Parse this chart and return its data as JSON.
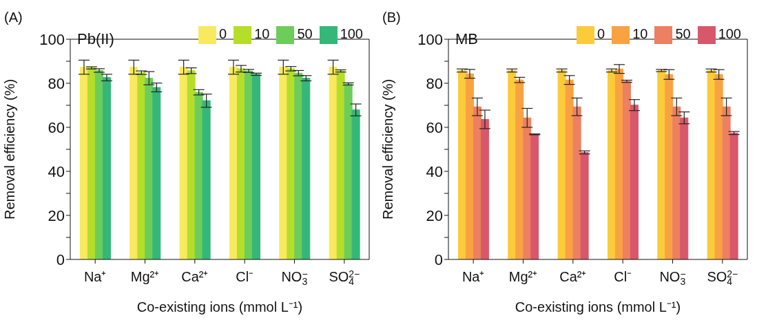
{
  "chart_data": [
    {
      "type": "bar",
      "title": "(A)",
      "subtitle": "Pb(II)",
      "xlabel": "Co-existing ions (mmol L⁻¹)",
      "ylabel": "Removal efficiency (%)",
      "categories": [
        "Na⁺",
        "Mg²⁺",
        "Ca²⁺",
        "Cl⁻",
        "NO$_{3}$$^{−}$",
        "SO$_{4}$$^{2−}$"
      ],
      "series": [
        {
          "name": "0",
          "color": "#f9e95e",
          "values": [
            87.3,
            87.3,
            87.3,
            87.3,
            87.3,
            87.3
          ],
          "errors": [
            3.2,
            3.2,
            3.2,
            3.2,
            3.2,
            3.2
          ]
        },
        {
          "name": "10",
          "color": "#b5de2b",
          "values": [
            87.0,
            84.8,
            85.7,
            86.6,
            86.6,
            85.6
          ],
          "errors": [
            0.5,
            0.8,
            1.3,
            1.5,
            1.0,
            0.5
          ]
        },
        {
          "name": "50",
          "color": "#6ccd5a",
          "values": [
            85.8,
            82.3,
            75.9,
            85.6,
            84.6,
            79.7
          ],
          "errors": [
            0.8,
            3.0,
            1.2,
            0.7,
            1.2,
            0.5
          ]
        },
        {
          "name": "100",
          "color": "#35b779",
          "values": [
            82.6,
            78.1,
            72.1,
            84.1,
            82.3,
            67.9
          ],
          "errors": [
            1.5,
            2.0,
            3.0,
            0.5,
            1.2,
            2.7
          ]
        }
      ],
      "ylim": [
        0,
        100
      ],
      "yticks": [
        0,
        {
          "value": 10,
          "label": null
        },
        20,
        {
          "value": 30,
          "label": null
        },
        40,
        {
          "value": 50,
          "label": null
        },
        60,
        {
          "value": 70,
          "label": null
        },
        80,
        {
          "value": 90,
          "label": null
        },
        100
      ],
      "legend": "top right",
      "grid": false
    },
    {
      "type": "bar",
      "title": "(B)",
      "subtitle": "MB",
      "xlabel": "Co-existing ions (mmol L⁻¹)",
      "ylabel": "Removal efficiency (%)",
      "categories": [
        "Na⁺",
        "Mg²⁺",
        "Ca²⁺",
        "Cl⁻",
        "NO$_{3}$$^{−}$",
        "SO$_{4}$$^{2−}$"
      ],
      "series": [
        {
          "name": "0",
          "color": "#fccb3a",
          "values": [
            85.8,
            85.8,
            85.8,
            85.8,
            85.8,
            85.8
          ],
          "errors": [
            0.7,
            0.7,
            0.7,
            0.7,
            0.5,
            0.7
          ]
        },
        {
          "name": "10",
          "color": "#f9a242",
          "values": [
            84.3,
            81.5,
            81.5,
            86.5,
            84.0,
            84.0
          ],
          "errors": [
            2.0,
            1.2,
            2.0,
            2.0,
            2.2,
            2.2
          ]
        },
        {
          "name": "50",
          "color": "#ec8060",
          "values": [
            69.3,
            64.3,
            69.3,
            80.9,
            69.3,
            69.3
          ],
          "errors": [
            4.0,
            4.3,
            4.0,
            0.5,
            4.0,
            4.0
          ]
        },
        {
          "name": "100",
          "color": "#d8576b",
          "values": [
            63.6,
            56.8,
            48.6,
            70.1,
            64.3,
            57.4
          ],
          "errors": [
            4.2,
            0.2,
            0.7,
            2.5,
            2.7,
            0.7
          ]
        }
      ],
      "ylim": [
        0,
        100
      ],
      "yticks": [
        0,
        {
          "value": 10,
          "label": null
        },
        20,
        {
          "value": 30,
          "label": null
        },
        40,
        {
          "value": 50,
          "label": null
        },
        60,
        {
          "value": 70,
          "label": null
        },
        80,
        {
          "value": 90,
          "label": null
        },
        100
      ],
      "legend": "top right",
      "grid": false
    }
  ]
}
